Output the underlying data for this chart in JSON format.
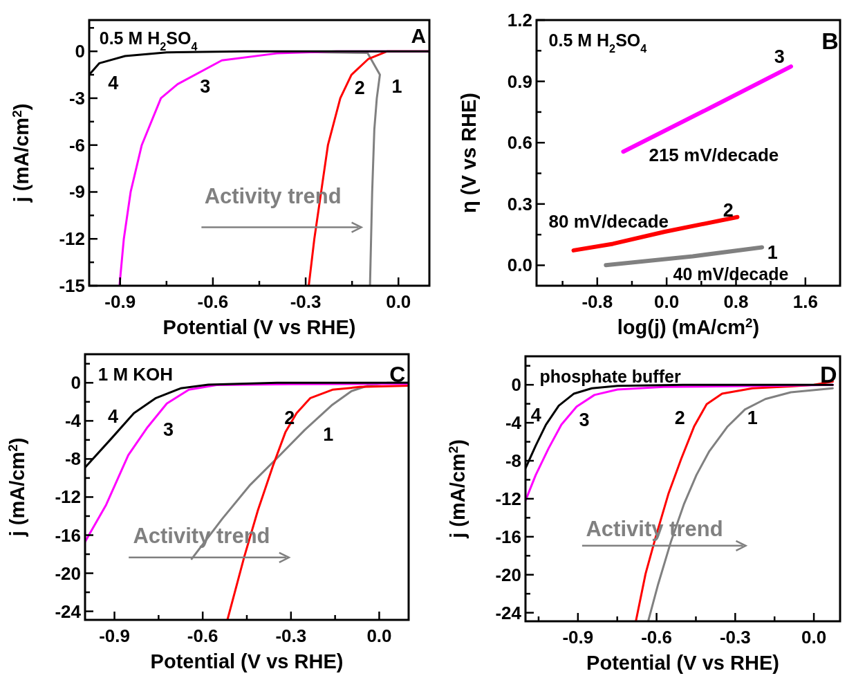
{
  "chart_data": [
    {
      "type": "line",
      "xlabel": "Potential (V vs RHE)",
      "ylabel": "j (mA/cm$^{2}$)",
      "xlim": [
        -1.0,
        0.1
      ],
      "ylim": [
        -15,
        2
      ],
      "xticks": [
        -0.9,
        {
          "value": -0.75,
          "label": null
        },
        -0.6,
        {
          "value": -0.45,
          "label": null
        },
        -0.3,
        {
          "value": -0.15,
          "label": null
        },
        {
          "value": 0,
          "label": "0.0"
        }
      ],
      "yticks": [
        -15,
        {
          "value": -13.5,
          "label": null
        },
        -12,
        {
          "value": -10.5,
          "label": null
        },
        -9,
        {
          "value": -7.5,
          "label": null
        },
        -6,
        {
          "value": -4.5,
          "label": null
        },
        -3,
        {
          "value": -1.5,
          "label": null
        },
        0,
        {
          "value": 1.5,
          "label": null
        }
      ],
      "annotations": [
        "0.5 M H$_{2}$SO$_{4}$",
        "A",
        "Activity trend"
      ],
      "series": [
        {
          "name": "1",
          "color": "#808080",
          "x": [
            -0.3,
            -0.1,
            -0.06,
            -0.07,
            -0.078,
            -0.085,
            -0.092
          ],
          "values": [
            -0.05,
            -0.1,
            -1.5,
            -3,
            -5,
            -9,
            -15
          ]
        },
        {
          "name": "2",
          "color": "#ff0000",
          "x": [
            -0.29,
            -0.272,
            -0.25,
            -0.228,
            -0.188,
            -0.152,
            -0.098,
            -0.036,
            0.1
          ],
          "values": [
            -15,
            -12,
            -9,
            -6,
            -3,
            -1.5,
            -0.5,
            0,
            0
          ]
        },
        {
          "name": "3",
          "color": "#ff00ff",
          "x": [
            -0.902,
            -0.888,
            -0.866,
            -0.83,
            -0.768,
            -0.714,
            -0.571,
            -0.393,
            -0.2,
            0.1
          ],
          "values": [
            -15,
            -12,
            -9,
            -6,
            -3,
            -2.1,
            -0.58,
            -0.13,
            0,
            0
          ]
        },
        {
          "name": "4",
          "color": "#000000",
          "x": [
            -1.0,
            -0.967,
            -0.884,
            -0.75,
            -0.5,
            0.1
          ],
          "values": [
            -1.5,
            -0.76,
            -0.3,
            -0.07,
            0,
            0
          ]
        }
      ]
    },
    {
      "type": "line",
      "xlabel": "log(j) (mA/cm$^{2}$)",
      "ylabel": "η (V vs RHE)",
      "xlim": [
        -1.5,
        2.0
      ],
      "ylim": [
        -0.1,
        1.2
      ],
      "xticks": [
        {
          "value": -1.2,
          "label": null
        },
        -0.8,
        {
          "value": -0.4,
          "label": null
        },
        {
          "value": 0,
          "label": "0.0"
        },
        {
          "value": 0.4,
          "label": null
        },
        0.8,
        {
          "value": 1.2,
          "label": null
        },
        1.6
      ],
      "yticks": [
        {
          "value": 0,
          "label": "0.0"
        },
        {
          "value": 0.15,
          "label": null
        },
        0.3,
        {
          "value": 0.45,
          "label": null
        },
        0.6,
        {
          "value": 0.75,
          "label": null
        },
        0.9,
        {
          "value": 1.05,
          "label": null
        },
        1.2
      ],
      "annotations": [
        "0.5 M H$_{2}$SO$_{4}$",
        "B",
        "215 mV/decade",
        "80 mV/decade",
        "40 mV/decade"
      ],
      "series": [
        {
          "name": "1",
          "color": "#808080",
          "x": [
            -0.7,
            0.3,
            1.1
          ],
          "values": [
            0.001,
            0.044,
            0.088
          ]
        },
        {
          "name": "2",
          "color": "#ff0000",
          "x": [
            -1.073,
            -0.62,
            -0.023,
            0.816
          ],
          "values": [
            0.073,
            0.105,
            0.164,
            0.236
          ]
        },
        {
          "name": "3",
          "color": "#ff00ff",
          "x": [
            -0.5,
            0.5,
            1.434
          ],
          "values": [
            0.556,
            0.77,
            0.973
          ]
        }
      ]
    },
    {
      "type": "line",
      "xlabel": "Potential (V vs RHE)",
      "ylabel": "j (mA/cm$^{2}$)",
      "xlim": [
        -1.0,
        0.1
      ],
      "ylim": [
        -24.9,
        3
      ],
      "xticks": [
        -0.9,
        {
          "value": -0.75,
          "label": null
        },
        -0.6,
        {
          "value": -0.45,
          "label": null
        },
        -0.3,
        {
          "value": -0.15,
          "label": null
        },
        {
          "value": 0,
          "label": "0.0"
        }
      ],
      "yticks": [
        -24,
        {
          "value": -22,
          "label": null
        },
        -20,
        {
          "value": -18,
          "label": null
        },
        -16,
        {
          "value": -14,
          "label": null
        },
        -12,
        {
          "value": -10,
          "label": null
        },
        -8,
        {
          "value": -6,
          "label": null
        },
        -4,
        {
          "value": -2,
          "label": null
        },
        0,
        {
          "value": 2,
          "label": null
        }
      ],
      "annotations": [
        "1 M KOH",
        "C",
        "Activity trend"
      ],
      "series": [
        {
          "name": "1",
          "color": "#808080",
          "x": [
            -0.6375,
            -0.534,
            -0.441,
            -0.347,
            -0.253,
            -0.159,
            -0.094,
            -0.0375,
            0.028,
            0.1
          ],
          "values": [
            -18.5,
            -14.3,
            -10.8,
            -7.9,
            -4.95,
            -2.3,
            -0.87,
            -0.29,
            0,
            0
          ]
        },
        {
          "name": "2",
          "color": "#ff0000",
          "x": [
            -0.516,
            -0.459,
            -0.4125,
            -0.361,
            -0.319,
            -0.281,
            -0.234,
            -0.159,
            -0.066,
            0.1
          ],
          "values": [
            -24.9,
            -18.3,
            -13.4,
            -8.7,
            -5.2,
            -3.2,
            -1.6,
            -0.73,
            -0.44,
            -0.3
          ]
        },
        {
          "name": "3",
          "color": "#ff00ff",
          "x": [
            -1.0,
            -0.928,
            -0.853,
            -0.7875,
            -0.722,
            -0.647,
            -0.553,
            -0.3,
            0.1
          ],
          "values": [
            -16.7,
            -12.8,
            -7.6,
            -4.66,
            -2.18,
            -0.73,
            -0.23,
            -0.15,
            -0.1
          ]
        },
        {
          "name": "4",
          "color": "#000000",
          "x": [
            -1.0,
            -0.909,
            -0.834,
            -0.759,
            -0.675,
            -0.581,
            -0.347,
            0.1
          ],
          "values": [
            -8.9,
            -5.8,
            -3.2,
            -1.6,
            -0.58,
            -0.2,
            0,
            0
          ]
        }
      ]
    },
    {
      "type": "line",
      "xlabel": "Potential (V vs RHE)",
      "ylabel": "j (mA/cm$^{2}$)",
      "xlim": [
        -1.1,
        0.1
      ],
      "ylim": [
        -24.9,
        3
      ],
      "xticks": [
        {
          "value": -1.05,
          "label": null
        },
        -0.9,
        {
          "value": -0.75,
          "label": null
        },
        -0.6,
        {
          "value": -0.45,
          "label": null
        },
        -0.3,
        {
          "value": -0.15,
          "label": null
        },
        {
          "value": 0,
          "label": "0.0"
        }
      ],
      "yticks": [
        -24,
        {
          "value": -22,
          "label": null
        },
        -20,
        {
          "value": -18,
          "label": null
        },
        -16,
        {
          "value": -14,
          "label": null
        },
        -12,
        {
          "value": -10,
          "label": null
        },
        -8,
        {
          "value": -6,
          "label": null
        },
        -4,
        {
          "value": -2,
          "label": null
        },
        0,
        {
          "value": 2,
          "label": null
        }
      ],
      "annotations": [
        "phosphate buffer",
        "D",
        "Activity trend"
      ],
      "series": [
        {
          "name": "1",
          "color": "#808080",
          "x": [
            -0.632,
            -0.594,
            -0.545,
            -0.496,
            -0.448,
            -0.399,
            -0.331,
            -0.263,
            -0.185,
            -0.088,
            0.072
          ],
          "values": [
            -24.9,
            -21,
            -16.5,
            -12.6,
            -9.5,
            -7,
            -4.45,
            -2.6,
            -1.5,
            -0.79,
            -0.37
          ]
        },
        {
          "name": "2",
          "color": "#ff0000",
          "x": [
            -0.679,
            -0.642,
            -0.603,
            -0.555,
            -0.506,
            -0.457,
            -0.409,
            -0.35,
            -0.234,
            -0.088,
            0,
            0.072
          ],
          "values": [
            -24.9,
            -19.9,
            -16,
            -11.5,
            -7.8,
            -4.4,
            -2.05,
            -0.93,
            -0.37,
            -0.17,
            0,
            0.34
          ]
        },
        {
          "name": "3",
          "color": "#ff00ff",
          "x": [
            -1.1,
            -1.061,
            -1.012,
            -0.963,
            -0.905,
            -0.837,
            -0.749,
            -0.574,
            -0.088,
            0.072
          ],
          "values": [
            -12.2,
            -9.5,
            -6.7,
            -4.2,
            -2.3,
            -1.07,
            -0.5,
            -0.23,
            -0.08,
            0
          ]
        },
        {
          "name": "4",
          "color": "#000000",
          "x": [
            -1.1,
            -1.061,
            -1.022,
            -0.973,
            -0.915,
            -0.847,
            -0.749,
            -0.5,
            0.072
          ],
          "values": [
            -8.8,
            -6.4,
            -4.2,
            -2.2,
            -0.93,
            -0.37,
            -0.11,
            0,
            0
          ]
        }
      ]
    }
  ]
}
